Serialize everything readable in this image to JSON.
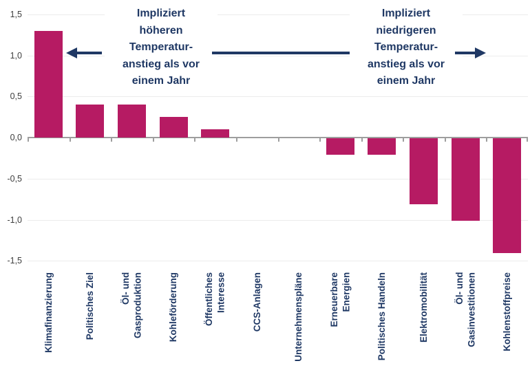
{
  "chart_data": {
    "type": "bar",
    "title": "",
    "categories": [
      "Klimafinanzierung",
      "Politisches Ziel",
      "Öl- und\nGasproduktion",
      "Kohleförderung",
      "Öffentliches\nInteresse",
      "CCS-Anlagen",
      "Unternehmenspläne",
      "Erneuerbare\nEnergien",
      "Politisches Handeln",
      "Elektromobilität",
      "Öl- und\nGasinvestitionen",
      "Kohlenstoffpreise"
    ],
    "values": [
      1.3,
      0.4,
      0.4,
      0.25,
      0.1,
      0,
      0,
      -0.2,
      -0.2,
      -0.8,
      -1.0,
      -1.4
    ],
    "ylim": [
      -1.5,
      1.5
    ],
    "yticks": [
      {
        "value": 1.5,
        "label": "1,5"
      },
      {
        "value": 1.0,
        "label": "1,0"
      },
      {
        "value": 0.5,
        "label": "0,5"
      },
      {
        "value": 0.0,
        "label": "0,0"
      },
      {
        "value": -0.5,
        "label": "-0,5"
      },
      {
        "value": -1.0,
        "label": "-1,0"
      },
      {
        "value": -1.5,
        "label": "-1,5"
      }
    ],
    "grid": true,
    "legend": false,
    "xlabel": "",
    "ylabel": "",
    "colors": {
      "bar": "#b61b63",
      "category_label": "#1f3864",
      "ytick_label": "#3d3d3d",
      "gridline": "#ececec",
      "axis": "#9e9e9e",
      "annotation": "#1f3864"
    },
    "annotations": [
      {
        "id": "higher",
        "arrow_direction": "left",
        "text": "Impliziert\nhöheren\nTemperatur-\nanstieg als vor\neinem Jahr"
      },
      {
        "id": "lower",
        "arrow_direction": "right",
        "text": "Impliziert\nniedrigeren\nTemperatur-\nanstieg als vor\neinem Jahr"
      }
    ]
  }
}
